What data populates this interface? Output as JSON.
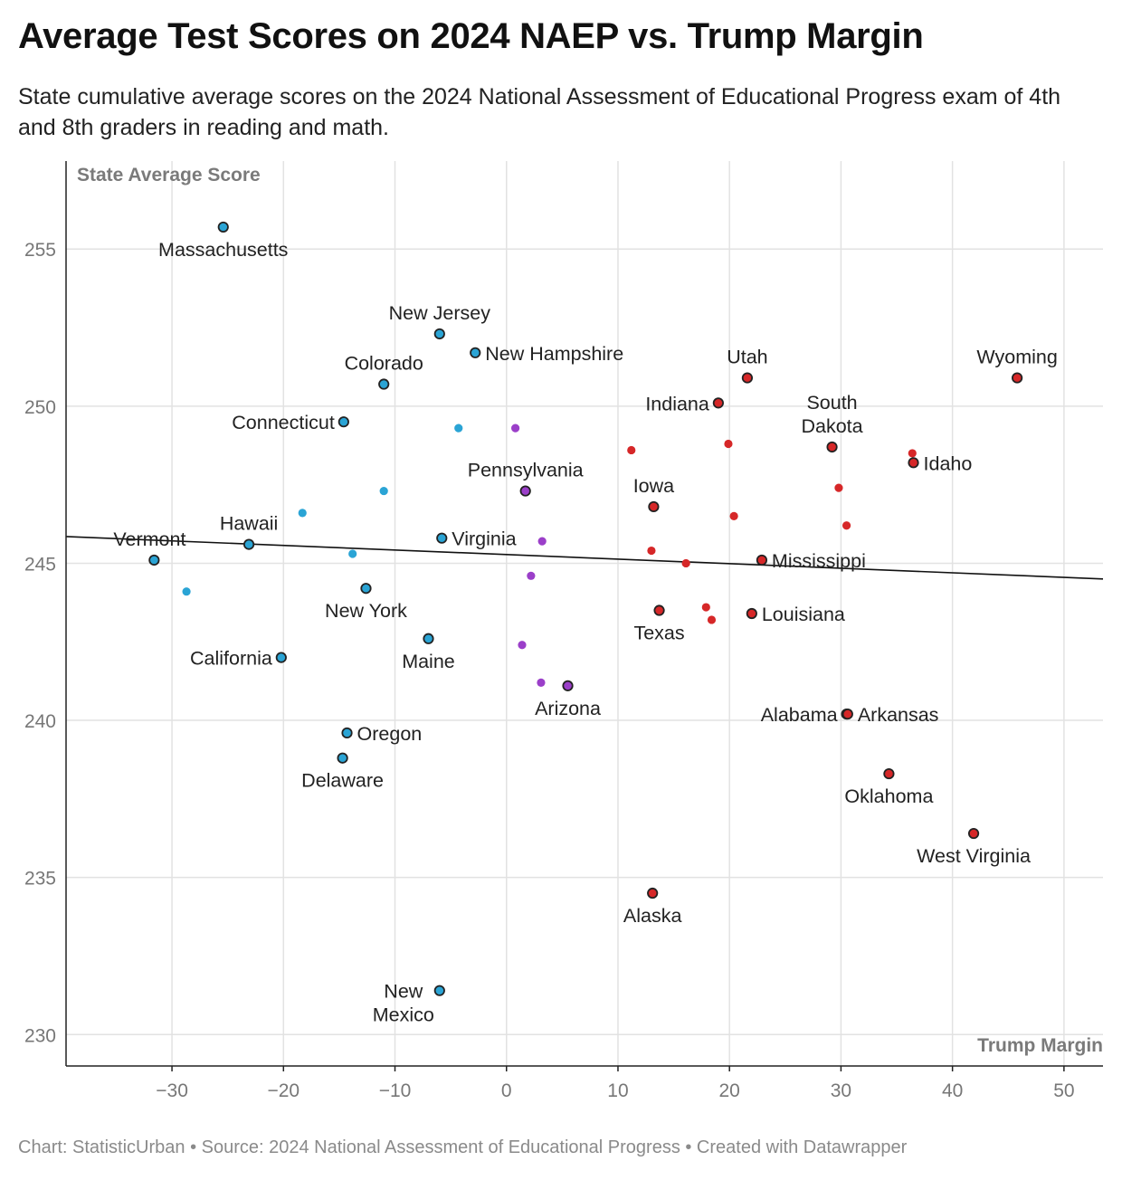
{
  "title": "Average Test Scores on 2024 NAEP vs. Trump Margin",
  "subtitle": "State cumulative average scores on the 2024 National Assessment of Educational Progress exam of 4th and 8th graders in reading and math.",
  "footer": "Chart: StatisticUrban • Source: 2024 National Assessment of Educational Progress • Created with Datawrapper",
  "colors": {
    "dem": "#2aa4d5",
    "swing": "#9b3fc9",
    "rep": "#d62728",
    "outline": "#222222",
    "grid": "#e2e2e2",
    "trend": "#111111"
  },
  "chart_data": {
    "type": "scatter",
    "xlabel": "Trump Margin",
    "ylabel": "State Average Score",
    "xlim": [
      -39.5,
      53.5
    ],
    "ylim": [
      229,
      257.8
    ],
    "x_ticks": [
      -30,
      -20,
      -10,
      0,
      10,
      20,
      30,
      40,
      50
    ],
    "x_tick_labels": [
      "−30",
      "−20",
      "−10",
      "0",
      "10",
      "20",
      "30",
      "40",
      "50"
    ],
    "y_ticks": [
      230,
      235,
      240,
      245,
      250,
      255
    ],
    "y_tick_labels": [
      "230",
      "235",
      "240",
      "245",
      "250",
      "255"
    ],
    "grid": true,
    "trendline": {
      "x": [
        -39.5,
        53.5
      ],
      "y": [
        245.85,
        244.5
      ]
    },
    "points": [
      {
        "label": "Massachusetts",
        "x": -25.4,
        "y": 255.7,
        "group": "dem",
        "anchor": "below"
      },
      {
        "label": "New Jersey",
        "x": -6.0,
        "y": 252.3,
        "group": "dem",
        "anchor": "above"
      },
      {
        "label": "New Hampshire",
        "x": -2.8,
        "y": 251.7,
        "group": "dem",
        "anchor": "right"
      },
      {
        "label": "Colorado",
        "x": -11.0,
        "y": 250.7,
        "group": "dem",
        "anchor": "above"
      },
      {
        "label": "Connecticut",
        "x": -14.6,
        "y": 249.5,
        "group": "dem",
        "anchor": "left"
      },
      {
        "label": "Hawaii",
        "x": -23.1,
        "y": 245.6,
        "group": "dem",
        "anchor": "above"
      },
      {
        "label": "Vermont",
        "x": -31.6,
        "y": 245.1,
        "group": "dem",
        "anchor": "upright"
      },
      {
        "label": "Virginia",
        "x": -5.8,
        "y": 245.8,
        "group": "dem",
        "anchor": "right"
      },
      {
        "label": "New York",
        "x": -12.6,
        "y": 244.2,
        "group": "dem",
        "anchor": "below"
      },
      {
        "label": "California",
        "x": -20.2,
        "y": 242.0,
        "group": "dem",
        "anchor": "left"
      },
      {
        "label": "Maine",
        "x": -7.0,
        "y": 242.6,
        "group": "dem",
        "anchor": "below"
      },
      {
        "label": "Oregon",
        "x": -14.3,
        "y": 239.6,
        "group": "dem",
        "anchor": "right"
      },
      {
        "label": "Delaware",
        "x": -14.7,
        "y": 238.8,
        "group": "dem",
        "anchor": "below"
      },
      {
        "label": "New Mexico",
        "x": -6.0,
        "y": 231.4,
        "group": "dem",
        "anchor": "left2"
      },
      {
        "label": "Pennsylvania",
        "x": 1.7,
        "y": 247.3,
        "group": "swing",
        "anchor": "above"
      },
      {
        "label": "Arizona",
        "x": 5.5,
        "y": 241.1,
        "group": "swing",
        "anchor": "below"
      },
      {
        "label": "Utah",
        "x": 21.6,
        "y": 250.9,
        "group": "rep",
        "anchor": "above"
      },
      {
        "label": "Indiana",
        "x": 19.0,
        "y": 250.1,
        "group": "rep",
        "anchor": "left"
      },
      {
        "label": "Wyoming",
        "x": 45.8,
        "y": 250.9,
        "group": "rep",
        "anchor": "above"
      },
      {
        "label": "South Dakota",
        "x": 29.2,
        "y": 248.7,
        "group": "rep",
        "anchor": "above2"
      },
      {
        "label": "Idaho",
        "x": 36.5,
        "y": 248.2,
        "group": "rep",
        "anchor": "right"
      },
      {
        "label": "Iowa",
        "x": 13.2,
        "y": 246.8,
        "group": "rep",
        "anchor": "above"
      },
      {
        "label": "Mississippi",
        "x": 22.9,
        "y": 245.1,
        "group": "rep",
        "anchor": "right"
      },
      {
        "label": "Texas",
        "x": 13.7,
        "y": 243.5,
        "group": "rep",
        "anchor": "below"
      },
      {
        "label": "Louisiana",
        "x": 22.0,
        "y": 243.4,
        "group": "rep",
        "anchor": "right"
      },
      {
        "label": "Alabama",
        "x": 30.5,
        "y": 240.2,
        "group": "rep",
        "anchor": "left"
      },
      {
        "label": "Arkansas",
        "x": 30.6,
        "y": 240.2,
        "group": "rep",
        "anchor": "right"
      },
      {
        "label": "Oklahoma",
        "x": 34.3,
        "y": 238.3,
        "group": "rep",
        "anchor": "below"
      },
      {
        "label": "West Virginia",
        "x": 41.9,
        "y": 236.4,
        "group": "rep",
        "anchor": "below"
      },
      {
        "label": "Alaska",
        "x": 13.1,
        "y": 234.5,
        "group": "rep",
        "anchor": "below"
      },
      {
        "x": -28.7,
        "y": 244.1,
        "group": "dem"
      },
      {
        "x": -18.3,
        "y": 246.6,
        "group": "dem"
      },
      {
        "x": -13.8,
        "y": 245.3,
        "group": "dem"
      },
      {
        "x": -11.0,
        "y": 247.3,
        "group": "dem"
      },
      {
        "x": -4.3,
        "y": 249.3,
        "group": "dem"
      },
      {
        "x": 0.8,
        "y": 249.3,
        "group": "swing"
      },
      {
        "x": 3.2,
        "y": 245.7,
        "group": "swing"
      },
      {
        "x": 2.2,
        "y": 244.6,
        "group": "swing"
      },
      {
        "x": 1.4,
        "y": 242.4,
        "group": "swing"
      },
      {
        "x": 3.1,
        "y": 241.2,
        "group": "swing"
      },
      {
        "x": 11.2,
        "y": 248.6,
        "group": "rep"
      },
      {
        "x": 19.9,
        "y": 248.8,
        "group": "rep"
      },
      {
        "x": 13.0,
        "y": 245.4,
        "group": "rep"
      },
      {
        "x": 16.1,
        "y": 245.0,
        "group": "rep"
      },
      {
        "x": 20.4,
        "y": 246.5,
        "group": "rep"
      },
      {
        "x": 17.9,
        "y": 243.6,
        "group": "rep"
      },
      {
        "x": 18.4,
        "y": 243.2,
        "group": "rep"
      },
      {
        "x": 29.8,
        "y": 247.4,
        "group": "rep"
      },
      {
        "x": 30.5,
        "y": 246.2,
        "group": "rep"
      },
      {
        "x": 36.4,
        "y": 248.5,
        "group": "rep"
      }
    ]
  }
}
